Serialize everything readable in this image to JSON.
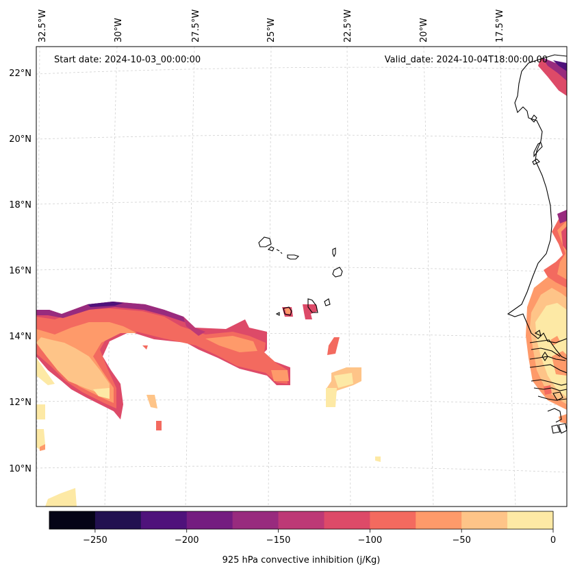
{
  "header": {
    "start_date": "Start date: 2024-10-03_00:00:00",
    "valid_date": "Valid_date: 2024-10-04T18:00:00.00"
  },
  "map": {
    "lon_labels": [
      "32.5°W",
      "30°W",
      "27.5°W",
      "25°W",
      "22.5°W",
      "20°W",
      "17.5°W"
    ],
    "lat_labels": [
      "22°N",
      "20°N",
      "18°N",
      "16°N",
      "14°N",
      "12°N",
      "10°N"
    ],
    "gridlines": "dashed light gray",
    "coastline_color": "#000000",
    "variable": "925 hPa convective inhibition"
  },
  "colorbar": {
    "label": "925 hPa convective inhibition (j/Kg)",
    "tick_labels": [
      "−250",
      "−200",
      "−150",
      "−100",
      "−50",
      "0"
    ],
    "bounds": [
      -275,
      -250,
      -225,
      -200,
      -175,
      -150,
      -125,
      -100,
      -75,
      -50,
      -25,
      0
    ],
    "colors": [
      "#050416",
      "#221150",
      "#4f127b",
      "#741c80",
      "#982b7e",
      "#bd3976",
      "#dd4a68",
      "#f36a5f",
      "#fe9a6a",
      "#fec488",
      "#fde9a5"
    ]
  }
}
